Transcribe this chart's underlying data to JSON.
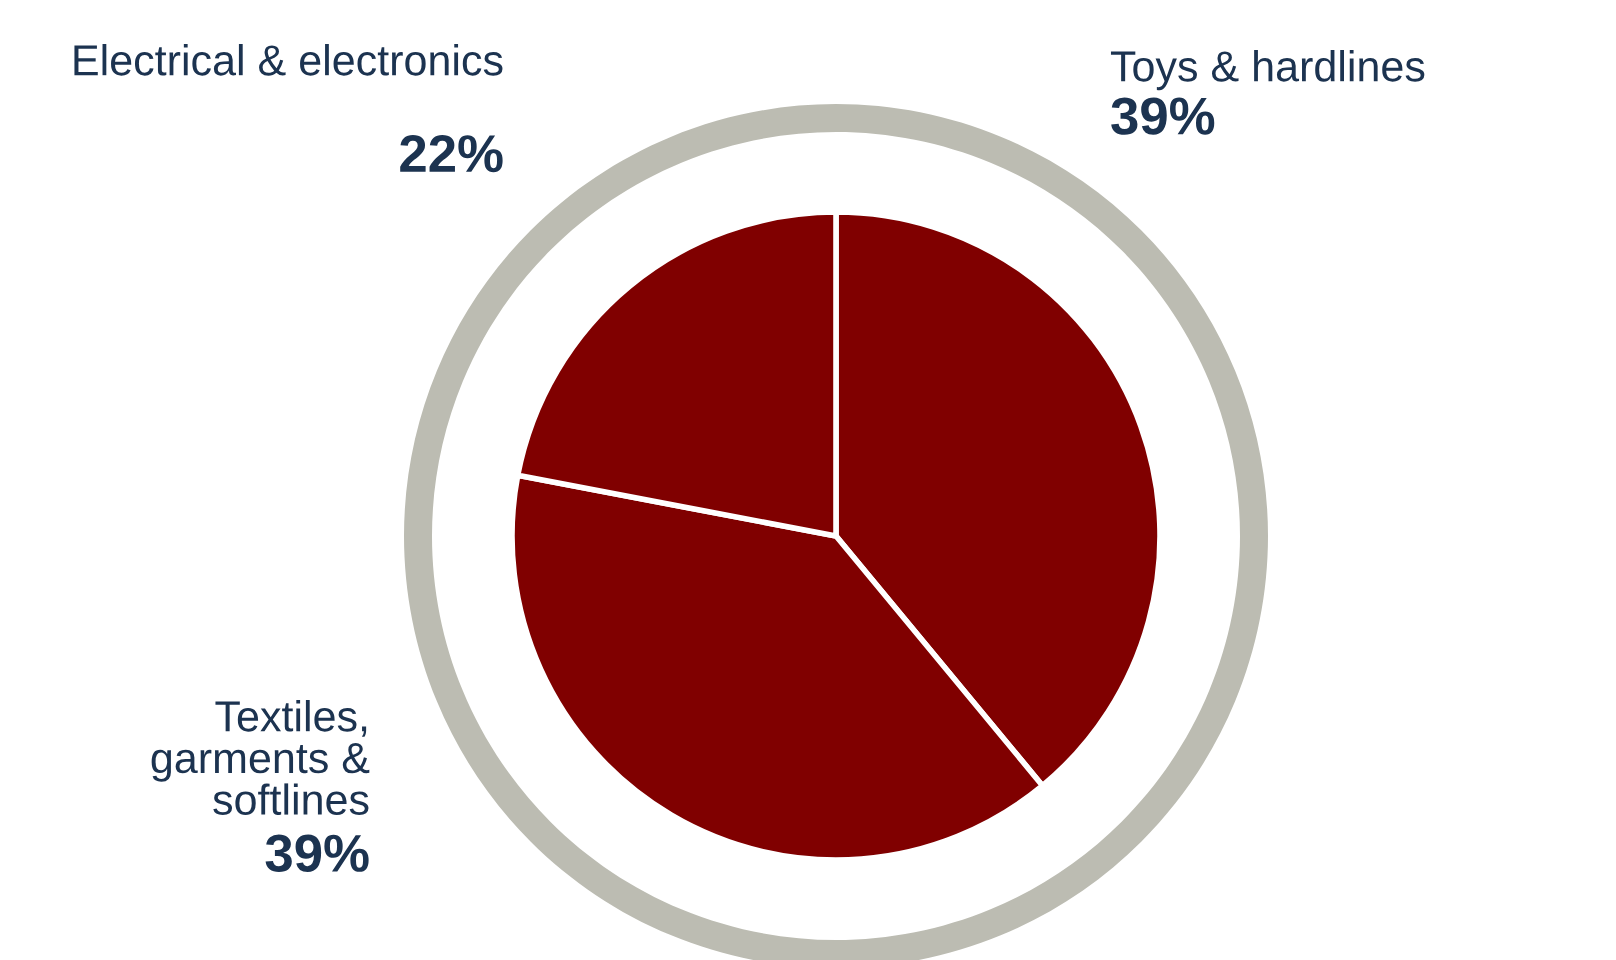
{
  "chart_data": {
    "type": "pie",
    "categories": [
      "Toys & hardlines",
      "Textiles, garments & softlines",
      "Electrical & electronics"
    ],
    "values": [
      39,
      39,
      22
    ],
    "colors": [
      "#800000",
      "#800000",
      "#800000"
    ],
    "value_labels": [
      "39%",
      "39%",
      "22%"
    ]
  }
}
